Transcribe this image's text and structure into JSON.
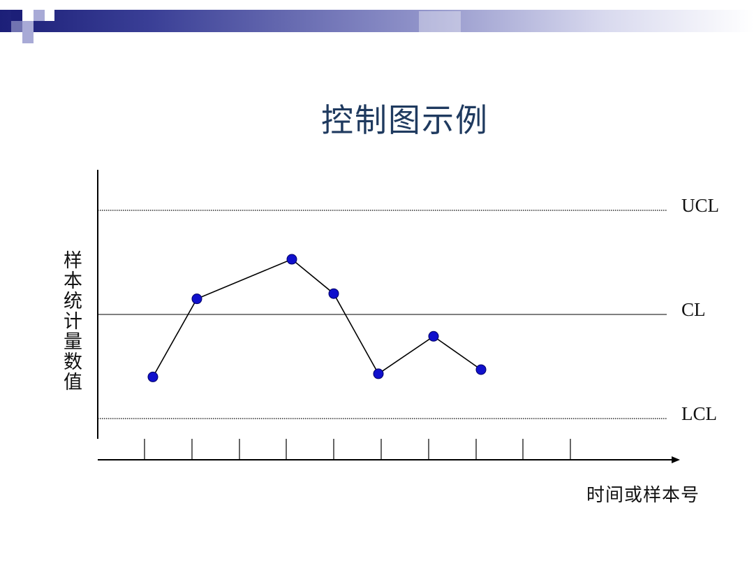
{
  "slide": {
    "title": "控制图示例"
  },
  "colors": {
    "header_band": "#1c1f78",
    "title": "#1f3a5f",
    "points": "#1010cc",
    "lines": "#000000"
  },
  "chart_data": {
    "type": "line",
    "title": "控制图示例",
    "xlabel": "时间或样本号",
    "ylabel": "样本统计量数值",
    "x": [
      1,
      2,
      3,
      4,
      5,
      6,
      7
    ],
    "series": [
      {
        "values": [
          -0.6,
          0.15,
          0.53,
          0.2,
          -0.57,
          -0.21,
          -0.53
        ]
      }
    ],
    "x_tick_slots": 10,
    "reference_lines": [
      {
        "name": "UCL",
        "value": 1.0,
        "style": "dotted"
      },
      {
        "name": "CL",
        "value": 0.0,
        "style": "solid"
      },
      {
        "name": "LCL",
        "value": -1.0,
        "style": "dotted"
      }
    ],
    "ylim": [
      -1.2,
      1.4
    ],
    "grid": false,
    "legend": "none"
  }
}
